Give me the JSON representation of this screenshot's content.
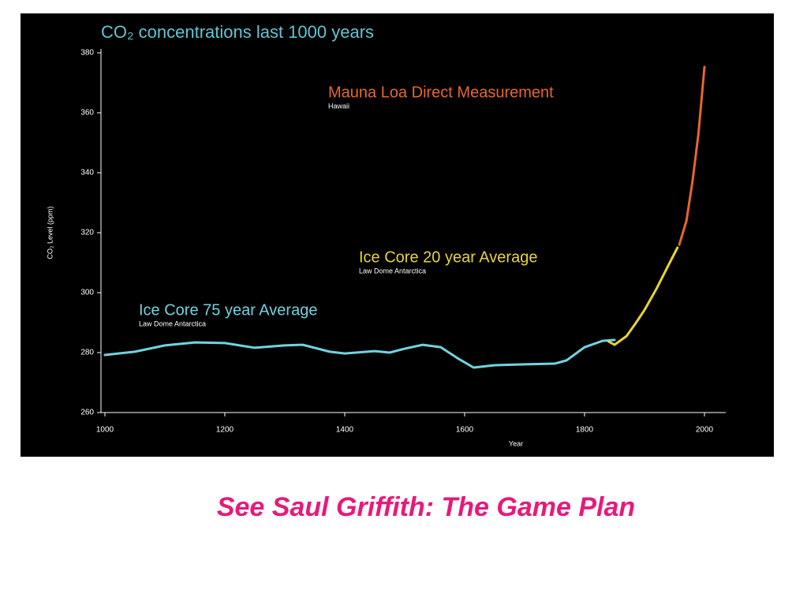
{
  "chart_data": {
    "type": "line",
    "title": "CO₂ concentrations last 1000 years",
    "x_label": "Year",
    "y_label": "CO₂ Level (ppm)",
    "xlim": [
      1000,
      2000
    ],
    "xticks": [
      1000,
      1200,
      1400,
      1600,
      1800,
      2000
    ],
    "ylim": [
      260,
      380
    ],
    "yticks": [
      260,
      280,
      300,
      320,
      340,
      360,
      380
    ],
    "grid": false,
    "series": [
      {
        "name": "Ice Core 75 year Average",
        "sublabel": "Law Dome Antarctica",
        "color": "#6fd4e0",
        "x": [
          1000,
          1050,
          1100,
          1150,
          1200,
          1250,
          1300,
          1330,
          1375,
          1400,
          1450,
          1475,
          1500,
          1530,
          1560,
          1590,
          1615,
          1650,
          1700,
          1750,
          1770,
          1800,
          1830,
          1850
        ],
        "values": [
          279.2,
          280.3,
          282.4,
          283.4,
          283.2,
          281.6,
          282.4,
          282.6,
          280.3,
          279.7,
          280.5,
          280,
          281.3,
          282.6,
          281.8,
          277.9,
          275,
          275.8,
          276.1,
          276.3,
          277.4,
          281.8,
          283.9,
          284.2
        ]
      },
      {
        "name": "Ice Core 20 year Average",
        "sublabel": "Law Dome Antarctica",
        "color": "#e6d435",
        "x": [
          1840,
          1850,
          1870,
          1885,
          1900,
          1920,
          1940,
          1955
        ],
        "values": [
          283.7,
          282.6,
          285.5,
          289.7,
          294.2,
          301.3,
          309.2,
          315
        ]
      },
      {
        "name": "Mauna Loa Direct Measurement",
        "sublabel": "Hawaii",
        "color": "#e8662c",
        "x": [
          1958,
          1970,
          1980,
          1990,
          2000
        ],
        "values": [
          316,
          324,
          337,
          353,
          375.3
        ]
      }
    ]
  },
  "caption": "See Saul Griffith: The Game Plan"
}
